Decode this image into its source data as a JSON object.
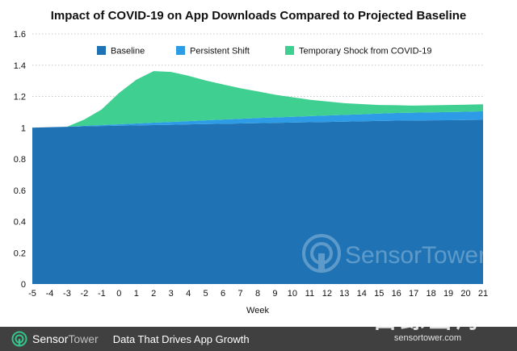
{
  "chart_data": {
    "type": "area",
    "stacked": true,
    "title": "Impact of COVID-19 on App Downloads Compared to Projected Baseline",
    "xlabel": "Week",
    "ylabel": "",
    "x": [
      -5,
      -4,
      -3,
      -2,
      -1,
      0,
      1,
      2,
      3,
      4,
      5,
      6,
      7,
      8,
      9,
      10,
      11,
      12,
      13,
      14,
      15,
      16,
      17,
      18,
      19,
      20,
      21
    ],
    "ylim": [
      0,
      1.6
    ],
    "yticks": [
      0,
      0.2,
      0.4,
      0.6,
      0.8,
      1,
      1.2,
      1.4,
      1.6
    ],
    "ytick_labels": [
      "0",
      "0.2",
      "0.4",
      "0.6",
      "0.8",
      "1",
      "1.2",
      "1.4",
      "1.6"
    ],
    "grid": true,
    "legend_position": "top",
    "series": [
      {
        "name": "Baseline",
        "color": "#1f73b4",
        "values": [
          1.0,
          1.003,
          1.006,
          1.009,
          1.011,
          1.013,
          1.015,
          1.017,
          1.019,
          1.021,
          1.023,
          1.025,
          1.027,
          1.029,
          1.031,
          1.033,
          1.035,
          1.037,
          1.039,
          1.041,
          1.043,
          1.045,
          1.046,
          1.047,
          1.048,
          1.049,
          1.05
        ]
      },
      {
        "name": "Persistent Shift",
        "color": "#2e9be6",
        "values": [
          0,
          0,
          0,
          0.003,
          0.006,
          0.009,
          0.012,
          0.015,
          0.018,
          0.021,
          0.024,
          0.027,
          0.03,
          0.033,
          0.035,
          0.037,
          0.039,
          0.041,
          0.043,
          0.045,
          0.047,
          0.049,
          0.05,
          0.051,
          0.052,
          0.053,
          0.055
        ]
      },
      {
        "name": "Temporary Shock from COVID-19",
        "color": "#3ecf91",
        "values": [
          0,
          0,
          0,
          0.04,
          0.1,
          0.2,
          0.28,
          0.33,
          0.32,
          0.29,
          0.255,
          0.225,
          0.195,
          0.17,
          0.145,
          0.125,
          0.105,
          0.09,
          0.075,
          0.065,
          0.055,
          0.05,
          0.045,
          0.045,
          0.045,
          0.045,
          0.045
        ]
      }
    ]
  },
  "footer": {
    "brand_primary": "Sensor",
    "brand_secondary": "Tower",
    "tagline": "Data That Drives App Growth"
  },
  "watermarks": {
    "chart_brand": "SensorTower",
    "corner_main": "白鲸出海",
    "corner_sub": "sensortower.com"
  },
  "colors": {
    "footer_bg": "#404040",
    "brand_green": "#35c48b",
    "grid": "#c8c8c8"
  }
}
